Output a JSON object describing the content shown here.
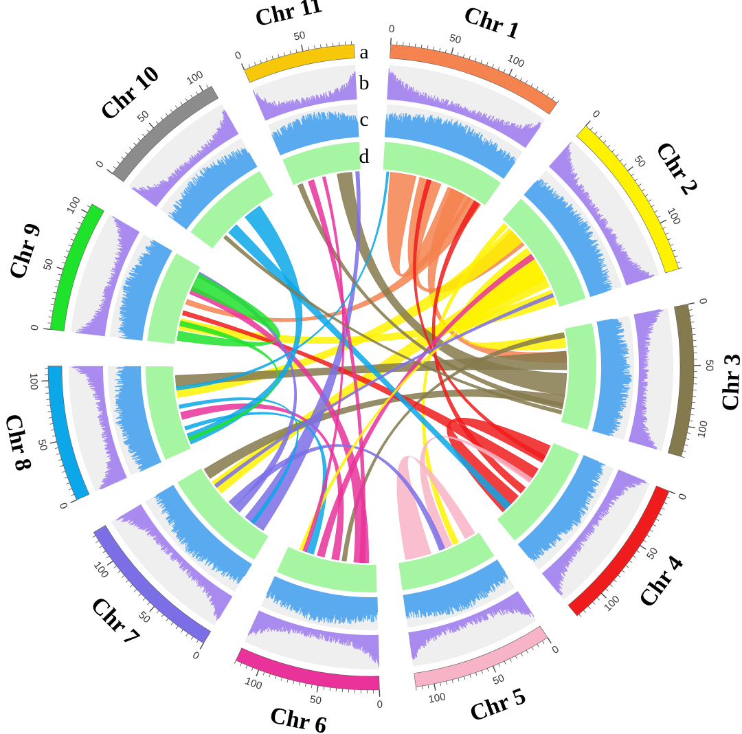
{
  "track_labels": [
    "a",
    "b",
    "c",
    "d"
  ],
  "tick_values": [
    0,
    50,
    100
  ],
  "chromosomes": [
    {
      "label": "Chr 1",
      "color": "#F4834F",
      "length": 145
    },
    {
      "label": "Chr 2",
      "color": "#FFF200",
      "length": 140
    },
    {
      "label": "Chr 3",
      "color": "#857A4D",
      "length": 125
    },
    {
      "label": "Chr 4",
      "color": "#EE1C1C",
      "length": 127
    },
    {
      "label": "Chr 5",
      "color": "#F8B4C7",
      "length": 115
    },
    {
      "label": "Chr 6",
      "color": "#E9339B",
      "length": 120
    },
    {
      "label": "Chr 7",
      "color": "#7B6FE6",
      "length": 128
    },
    {
      "label": "Chr 8",
      "color": "#0BA7E8",
      "length": 112
    },
    {
      "label": "Chr 9",
      "color": "#1FE22B",
      "length": 108
    },
    {
      "label": "Chr 10",
      "color": "#8C8C8C",
      "length": 108
    },
    {
      "label": "Chr 11",
      "color": "#F7C80A",
      "length": 92
    }
  ],
  "track_colors": {
    "b_bars": "#A98AEF",
    "c_bars": "#5AAAF0",
    "d_ring": "#A6F5A3",
    "track_bg": "#EFEFEF"
  },
  "links": [
    {
      "source": 1,
      "s_start": 10,
      "s_end": 45,
      "target": 1,
      "t_start": 90,
      "t_end": 125,
      "color": "#F4834F"
    },
    {
      "source": 1,
      "s_start": 50,
      "s_end": 80,
      "target": 2,
      "t_start": 20,
      "t_end": 45,
      "color": "#F4834F"
    },
    {
      "source": 1,
      "s_start": 95,
      "s_end": 115,
      "target": 3,
      "t_start": 30,
      "t_end": 45,
      "color": "#F4834F"
    },
    {
      "source": 1,
      "s_start": 120,
      "s_end": 140,
      "target": 9,
      "t_start": 55,
      "t_end": 62,
      "color": "#F4834F"
    },
    {
      "source": 2,
      "s_start": 15,
      "s_end": 40,
      "target": 8,
      "t_start": 70,
      "t_end": 85,
      "color": "#FFF200"
    },
    {
      "source": 2,
      "s_start": 50,
      "s_end": 110,
      "target": 3,
      "t_start": 5,
      "t_end": 25,
      "color": "#FFF200"
    },
    {
      "source": 2,
      "s_start": 70,
      "s_end": 100,
      "target": 7,
      "t_start": 85,
      "t_end": 105,
      "color": "#FFF200"
    },
    {
      "source": 2,
      "s_start": 115,
      "s_end": 135,
      "target": 9,
      "t_start": 20,
      "t_end": 35,
      "color": "#FFF200"
    },
    {
      "source": 2,
      "s_start": 5,
      "s_end": 12,
      "target": 5,
      "t_start": 30,
      "t_end": 38,
      "color": "#FFF200"
    },
    {
      "source": 3,
      "s_start": 30,
      "s_end": 55,
      "target": 8,
      "t_start": 85,
      "t_end": 100,
      "color": "#857A4D"
    },
    {
      "source": 3,
      "s_start": 60,
      "s_end": 90,
      "target": 11,
      "t_start": 60,
      "t_end": 80,
      "color": "#857A4D"
    },
    {
      "source": 3,
      "s_start": 90,
      "s_end": 105,
      "target": 7,
      "t_start": 110,
      "t_end": 125,
      "color": "#857A4D"
    },
    {
      "source": 3,
      "s_start": 5,
      "s_end": 12,
      "target": 6,
      "t_start": 40,
      "t_end": 46,
      "color": "#857A4D"
    },
    {
      "source": 4,
      "s_start": 5,
      "s_end": 30,
      "target": 4,
      "t_start": 85,
      "t_end": 115,
      "color": "#EE1C1C"
    },
    {
      "source": 4,
      "s_start": 40,
      "s_end": 60,
      "target": 9,
      "t_start": 40,
      "t_end": 46,
      "color": "#EE1C1C"
    },
    {
      "source": 4,
      "s_start": 70,
      "s_end": 80,
      "target": 1,
      "t_start": 130,
      "t_end": 138,
      "color": "#EE1C1C"
    },
    {
      "source": 5,
      "s_start": 70,
      "s_end": 105,
      "target": 5,
      "t_start": 5,
      "t_end": 20,
      "color": "#F8B4C7"
    },
    {
      "source": 5,
      "s_start": 40,
      "s_end": 55,
      "target": 4,
      "t_start": 55,
      "t_end": 62,
      "color": "#F8B4C7"
    },
    {
      "source": 6,
      "s_start": 10,
      "s_end": 30,
      "target": 9,
      "t_start": 70,
      "t_end": 80,
      "color": "#E9339B"
    },
    {
      "source": 6,
      "s_start": 50,
      "s_end": 60,
      "target": 8,
      "t_start": 40,
      "t_end": 50,
      "color": "#E9339B"
    },
    {
      "source": 6,
      "s_start": 70,
      "s_end": 80,
      "target": 2,
      "t_start": 60,
      "t_end": 68,
      "color": "#E9339B"
    },
    {
      "source": 7,
      "s_start": 10,
      "s_end": 40,
      "target": 11,
      "t_start": 85,
      "t_end": 90,
      "color": "#7B6FE6"
    },
    {
      "source": 7,
      "s_start": 50,
      "s_end": 60,
      "target": 9,
      "t_start": 95,
      "t_end": 102,
      "color": "#7B6FE6"
    },
    {
      "source": 7,
      "s_start": 60,
      "s_end": 70,
      "target": 5,
      "t_start": 50,
      "t_end": 58,
      "color": "#7B6FE6"
    },
    {
      "source": 8,
      "s_start": 5,
      "s_end": 20,
      "target": 10,
      "t_start": 60,
      "t_end": 85,
      "color": "#0BA7E8"
    },
    {
      "source": 8,
      "s_start": 25,
      "s_end": 30,
      "target": 6,
      "t_start": 85,
      "t_end": 95,
      "color": "#0BA7E8"
    },
    {
      "source": 8,
      "s_start": 55,
      "s_end": 60,
      "target": 7,
      "t_start": 25,
      "t_end": 30,
      "color": "#0BA7E8"
    },
    {
      "source": 9,
      "s_start": 75,
      "s_end": 100,
      "target": 9,
      "t_start": 5,
      "t_end": 18,
      "color": "#1FE22B"
    },
    {
      "source": 9,
      "s_start": 25,
      "s_end": 32,
      "target": 8,
      "t_start": 10,
      "t_end": 15,
      "color": "#1FE22B"
    },
    {
      "source": 10,
      "s_start": 30,
      "s_end": 45,
      "target": 4,
      "t_start": 100,
      "t_end": 110,
      "color": "#0BA7E8"
    },
    {
      "source": 11,
      "s_start": 5,
      "s_end": 12,
      "target": 3,
      "t_start": 100,
      "t_end": 108,
      "color": "#857A4D"
    },
    {
      "source": 11,
      "s_start": 20,
      "s_end": 28,
      "target": 6,
      "t_start": 15,
      "t_end": 22,
      "color": "#E9339B"
    },
    {
      "source": 1,
      "s_start": 60,
      "s_end": 66,
      "target": 4,
      "t_start": 20,
      "t_end": 26,
      "color": "#EE1C1C"
    },
    {
      "source": 2,
      "s_start": 90,
      "s_end": 95,
      "target": 6,
      "t_start": 100,
      "t_end": 105,
      "color": "#FFF200"
    },
    {
      "source": 3,
      "s_start": 110,
      "s_end": 115,
      "target": 10,
      "t_start": 20,
      "t_end": 25,
      "color": "#857A4D"
    },
    {
      "source": 7,
      "s_start": 95,
      "s_end": 100,
      "target": 2,
      "t_start": 120,
      "t_end": 125,
      "color": "#7B6FE6"
    },
    {
      "source": 6,
      "s_start": 95,
      "s_end": 100,
      "target": 11,
      "t_start": 40,
      "t_end": 44,
      "color": "#E9339B"
    },
    {
      "source": 8,
      "s_start": 80,
      "s_end": 85,
      "target": 1,
      "t_start": 5,
      "t_end": 8,
      "color": "#0BA7E8"
    }
  ]
}
